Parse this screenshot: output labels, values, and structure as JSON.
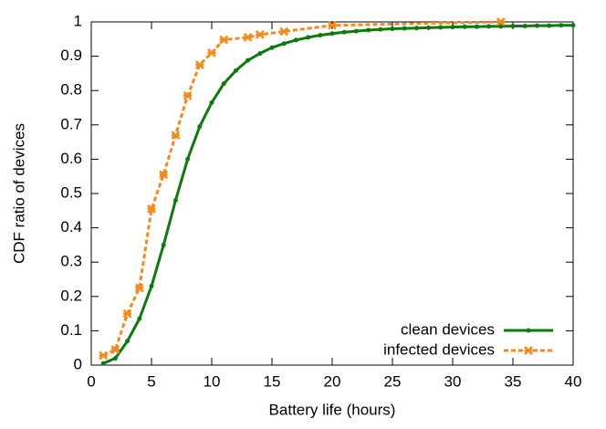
{
  "chart_data": {
    "type": "line",
    "xlabel": "Battery life (hours)",
    "ylabel": "CDF ratio of devices",
    "xlim": [
      0,
      40
    ],
    "xticks": [
      0,
      5,
      10,
      15,
      20,
      25,
      30,
      35,
      40
    ],
    "ylim": [
      0,
      1
    ],
    "yticks": [
      0,
      0.1,
      0.2,
      0.3,
      0.4,
      0.5,
      0.6,
      0.7,
      0.8,
      0.9,
      1
    ],
    "legend": "lower right",
    "series": [
      {
        "name": "clean devices",
        "color": "#0d7a0d",
        "dashed": false,
        "x": [
          1,
          2,
          3,
          4,
          5,
          6,
          7,
          8,
          9,
          10,
          11,
          12,
          13,
          14,
          15,
          16,
          17,
          18,
          19,
          20,
          21,
          22,
          23,
          24,
          25,
          26,
          27,
          28,
          29,
          30,
          31,
          32,
          33,
          34,
          35,
          36,
          37,
          38,
          39,
          40
        ],
        "values": [
          0.005,
          0.02,
          0.07,
          0.135,
          0.23,
          0.35,
          0.48,
          0.6,
          0.695,
          0.765,
          0.82,
          0.858,
          0.888,
          0.908,
          0.925,
          0.937,
          0.947,
          0.955,
          0.961,
          0.966,
          0.97,
          0.973,
          0.976,
          0.978,
          0.98,
          0.981,
          0.982,
          0.983,
          0.984,
          0.985,
          0.986,
          0.986,
          0.987,
          0.987,
          0.988,
          0.988,
          0.989,
          0.989,
          0.99,
          0.99
        ]
      },
      {
        "name": "infected devices",
        "color": "#f28a1e",
        "dashed": true,
        "x": [
          1,
          2,
          3,
          4,
          5,
          6,
          7,
          8,
          9,
          10,
          11,
          13,
          14,
          16,
          20,
          34
        ],
        "values": [
          0.028,
          0.045,
          0.15,
          0.225,
          0.455,
          0.555,
          0.67,
          0.785,
          0.875,
          0.91,
          0.948,
          0.955,
          0.963,
          0.972,
          0.99,
          1.0
        ]
      }
    ]
  }
}
